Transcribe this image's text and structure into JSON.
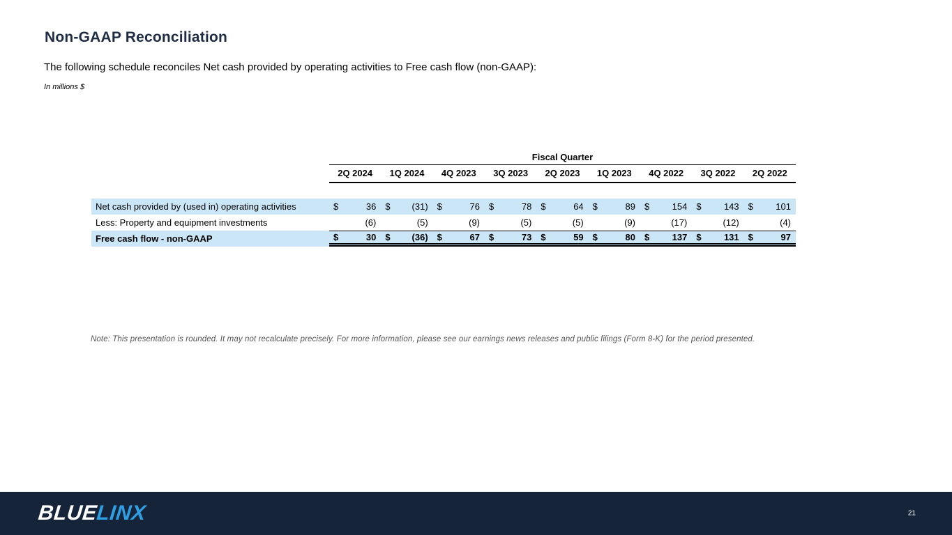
{
  "slide": {
    "title": "Non-GAAP Reconciliation",
    "subtitle": "The following schedule reconciles Net cash provided by operating activities to Free cash flow (non-GAAP):",
    "units_note": "In millions $",
    "footnote": "Note: This presentation is rounded. It may not recalculate precisely. For more information, please see our earnings news releases and public filings (Form 8-K) for the period presented.",
    "page_number": "21"
  },
  "logo": {
    "part1": "BLUE",
    "part2": "LINX"
  },
  "table": {
    "group_header": "Fiscal Quarter",
    "columns": [
      "2Q 2024",
      "1Q 2024",
      "4Q 2023",
      "3Q 2023",
      "2Q 2023",
      "1Q 2023",
      "4Q 2022",
      "3Q 2022",
      "2Q 2022"
    ],
    "rows": [
      {
        "label": "Net cash provided by (used in) operating activities",
        "currency": "$",
        "values": [
          "36",
          "(31)",
          "76",
          "78",
          "64",
          "89",
          "154",
          "143",
          "101"
        ]
      },
      {
        "label": "Less: Property and equipment investments",
        "currency": "",
        "values": [
          "(6)",
          "(5)",
          "(9)",
          "(5)",
          "(5)",
          "(9)",
          "(17)",
          "(12)",
          "(4)"
        ]
      },
      {
        "label": "Free cash flow - non-GAAP",
        "currency": "$",
        "values": [
          "30",
          "(36)",
          "67",
          "73",
          "59",
          "80",
          "137",
          "131",
          "97"
        ]
      }
    ]
  },
  "colors": {
    "highlight_blue": "#cbe7f7",
    "navy": "#16243a",
    "logo_blue": "#2e9fe2",
    "title_navy": "#1f2d44",
    "note_gray": "#555555"
  }
}
